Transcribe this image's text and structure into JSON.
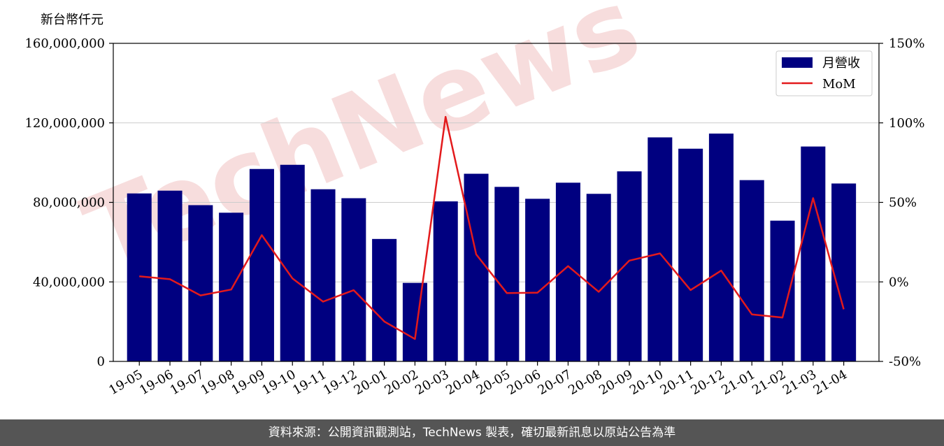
{
  "unit_label": "新台幣仟元",
  "footer_text": "資料來源：公開資訊觀測站，TechNews 製表，確切最新訊息以原站公告為準",
  "watermark_text": "TechNews",
  "colors": {
    "bar": "#000080",
    "line": "#e31a1c",
    "grid": "#cccccc",
    "watermark": "#f2c7c7"
  },
  "chart_data": {
    "type": "bar",
    "categories": [
      "19-05",
      "19-06",
      "19-07",
      "19-08",
      "19-09",
      "19-10",
      "19-11",
      "19-12",
      "20-01",
      "20-02",
      "20-03",
      "20-04",
      "20-05",
      "20-06",
      "20-07",
      "20-08",
      "20-09",
      "20-10",
      "20-11",
      "20-12",
      "21-01",
      "21-02",
      "21-03",
      "21-04"
    ],
    "series": [
      {
        "name": "月營收",
        "type": "bar",
        "axis": "left",
        "values": [
          84500000,
          85900000,
          78600000,
          74800000,
          96800000,
          98900000,
          86600000,
          82100000,
          61600000,
          39500000,
          80500000,
          94400000,
          87800000,
          81800000,
          89900000,
          84300000,
          95600000,
          112700000,
          107000000,
          114600000,
          91200000,
          70800000,
          108100000,
          89500000
        ]
      },
      {
        "name": "MoM",
        "type": "line",
        "axis": "right",
        "values": [
          3.5,
          1.7,
          -8.5,
          -4.8,
          29.4,
          2.2,
          -12.4,
          -5.2,
          -24.9,
          -35.9,
          103.8,
          17.3,
          -7.0,
          -6.8,
          9.9,
          -6.2,
          13.4,
          17.9,
          -5.1,
          7.1,
          -20.4,
          -22.4,
          52.7,
          -17.2
        ]
      }
    ],
    "y_left": {
      "ylim": [
        0,
        160000000
      ],
      "ticks": [
        0,
        40000000,
        80000000,
        120000000,
        160000000
      ],
      "tick_labels": [
        "0",
        "40,000,000",
        "80,000,000",
        "120,000,000",
        "160,000,000"
      ]
    },
    "y_right": {
      "ylim": [
        -50,
        150
      ],
      "ticks": [
        -50,
        0,
        50,
        100,
        150
      ],
      "tick_labels": [
        "-50%",
        "0%",
        "50%",
        "100%",
        "150%"
      ]
    },
    "grid": true,
    "legend_position": "top-right",
    "xlabel": "",
    "title": ""
  }
}
